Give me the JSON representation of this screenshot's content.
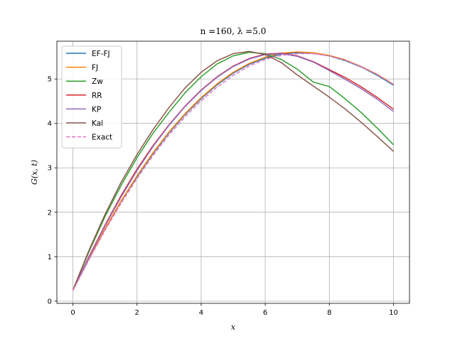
{
  "chart_data": {
    "type": "line",
    "title": "n =160, λ =5.0",
    "xlabel": "x",
    "ylabel": "G(x, t)",
    "xlim": [
      -0.5,
      10.5
    ],
    "ylim": [
      -0.05,
      5.85
    ],
    "xticks": [
      0,
      2,
      4,
      6,
      8,
      10
    ],
    "yticks": [
      0,
      1,
      2,
      3,
      4,
      5
    ],
    "grid": true,
    "legend_position": "top-left",
    "x": [
      0,
      0.5,
      1,
      1.5,
      2,
      2.5,
      3,
      3.5,
      4,
      4.5,
      5,
      5.5,
      6,
      6.5,
      7,
      7.5,
      8,
      8.5,
      9,
      9.5,
      10
    ],
    "series": [
      {
        "name": "EF-FJ",
        "color": "#1f77b4",
        "dash": "solid",
        "values": [
          0.25,
          0.95,
          1.62,
          2.24,
          2.8,
          3.32,
          3.79,
          4.2,
          4.56,
          4.87,
          5.13,
          5.33,
          5.47,
          5.56,
          5.59,
          5.58,
          5.52,
          5.41,
          5.27,
          5.08,
          4.86
        ]
      },
      {
        "name": "FJ",
        "color": "#ff7f0e",
        "dash": "solid",
        "values": [
          0.25,
          0.96,
          1.63,
          2.25,
          2.82,
          3.34,
          3.81,
          4.22,
          4.58,
          4.89,
          5.15,
          5.35,
          5.49,
          5.58,
          5.61,
          5.59,
          5.53,
          5.43,
          5.28,
          5.1,
          4.88
        ]
      },
      {
        "name": "Zw",
        "color": "#2ca02c",
        "dash": "solid",
        "values": [
          0.25,
          1.11,
          1.9,
          2.6,
          3.23,
          3.78,
          4.25,
          4.69,
          5.05,
          5.34,
          5.52,
          5.6,
          5.57,
          5.44,
          5.22,
          4.93,
          4.83,
          4.55,
          4.24,
          3.89,
          3.52
        ]
      },
      {
        "name": "RR",
        "color": "#d62728",
        "dash": "solid",
        "values": [
          0.25,
          1.0,
          1.71,
          2.37,
          2.97,
          3.5,
          3.97,
          4.39,
          4.75,
          5.05,
          5.29,
          5.46,
          5.56,
          5.58,
          5.52,
          5.39,
          5.21,
          5.03,
          4.82,
          4.58,
          4.32
        ]
      },
      {
        "name": "KP",
        "color": "#9467bd",
        "dash": "solid",
        "values": [
          0.25,
          0.99,
          1.69,
          2.34,
          2.94,
          3.48,
          3.96,
          4.38,
          4.74,
          5.04,
          5.28,
          5.45,
          5.55,
          5.57,
          5.51,
          5.38,
          5.19,
          4.99,
          4.78,
          4.54,
          4.27
        ]
      },
      {
        "name": "Kal",
        "color": "#8c564b",
        "dash": "solid",
        "values": [
          0.25,
          1.14,
          1.95,
          2.67,
          3.3,
          3.86,
          4.36,
          4.8,
          5.15,
          5.41,
          5.57,
          5.62,
          5.55,
          5.37,
          5.09,
          4.84,
          4.59,
          4.32,
          4.02,
          3.7,
          3.37
        ]
      },
      {
        "name": "Exact",
        "color": "#e377c2",
        "dash": "dashed",
        "values": [
          0.24,
          0.93,
          1.59,
          2.2,
          2.76,
          3.28,
          3.74,
          4.15,
          4.51,
          4.82,
          5.08,
          5.29,
          5.44,
          5.53,
          5.57,
          5.57,
          5.52,
          5.42,
          5.28,
          5.1,
          4.88
        ]
      }
    ]
  }
}
